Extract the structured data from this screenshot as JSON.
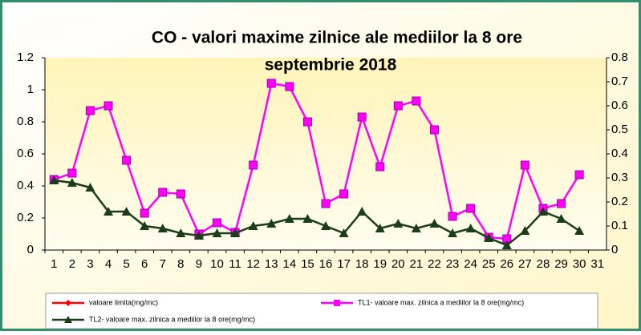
{
  "chart_data": {
    "type": "line",
    "title": "CO - valori maxime zilnice ale mediilor la 8 ore",
    "subtitle": "septembrie  2018",
    "categories": [
      "1",
      "2",
      "3",
      "4",
      "5",
      "6",
      "7",
      "8",
      "9",
      "10",
      "11",
      "12",
      "13",
      "14",
      "15",
      "16",
      "17",
      "18",
      "19",
      "20",
      "21",
      "22",
      "23",
      "24",
      "25",
      "26",
      "27",
      "28",
      "29",
      "30",
      "31"
    ],
    "series": [
      {
        "name": "valoare limita(mg/mc)",
        "color": "#ff0000",
        "marker": "diamond",
        "values": [
          null,
          null,
          null,
          null,
          null,
          null,
          null,
          null,
          null,
          null,
          null,
          null,
          null,
          null,
          null,
          null,
          null,
          null,
          null,
          null,
          null,
          null,
          null,
          null,
          null,
          null,
          null,
          null,
          null,
          null,
          null
        ]
      },
      {
        "name": "TL1- valoare max. zilnica a mediilor la 8 ore(mg/mc)",
        "color": "#ff00ff",
        "marker": "square",
        "values": [
          0.44,
          0.48,
          0.87,
          0.9,
          0.56,
          0.23,
          0.36,
          0.35,
          0.1,
          0.17,
          0.11,
          0.53,
          1.04,
          1.02,
          0.8,
          0.29,
          0.35,
          0.83,
          0.52,
          0.9,
          0.93,
          0.75,
          0.21,
          0.26,
          0.08,
          0.07,
          0.53,
          0.26,
          0.29,
          0.47,
          null
        ]
      },
      {
        "name": "TL2- valoare max. zilnica a mediilor la 8 ore(mg/mc)",
        "color": "#1a3d1a",
        "marker": "triangle",
        "axis": "y2",
        "values": [
          0.29,
          0.28,
          0.26,
          0.16,
          0.16,
          0.1,
          0.09,
          0.07,
          0.06,
          0.07,
          0.07,
          0.1,
          0.11,
          0.13,
          0.13,
          0.1,
          0.07,
          0.16,
          0.09,
          0.11,
          0.09,
          0.11,
          0.07,
          0.09,
          0.05,
          0.02,
          0.08,
          0.16,
          0.13,
          0.08,
          null
        ]
      }
    ],
    "ylim": [
      0,
      1.2
    ],
    "yticks": [
      0,
      0.2,
      0.4,
      0.6,
      0.8,
      1,
      1.2
    ],
    "y2lim": [
      0,
      0.8
    ],
    "y2ticks": [
      0,
      0.1,
      0.2,
      0.3,
      0.4,
      0.5,
      0.6,
      0.7,
      0.8
    ],
    "legend": "bottom"
  }
}
